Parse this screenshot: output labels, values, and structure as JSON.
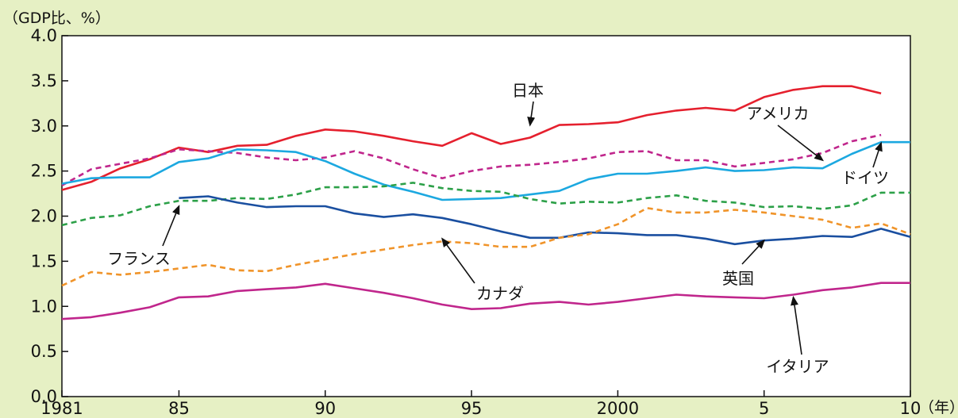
{
  "chart_data": {
    "type": "line",
    "ylabel": "（GDP比、%）",
    "xunit": "（年）",
    "ylim": [
      0,
      4.0
    ],
    "yticks": [
      "0.0",
      "0.5",
      "1.0",
      "1.5",
      "2.0",
      "2.5",
      "3.0",
      "3.5",
      "4.0"
    ],
    "xlim": [
      1981,
      2010
    ],
    "xticks": [
      {
        "x": 1981,
        "label": "1981"
      },
      {
        "x": 1985,
        "label": "85"
      },
      {
        "x": 1990,
        "label": "90"
      },
      {
        "x": 1995,
        "label": "95"
      },
      {
        "x": 2000,
        "label": "2000"
      },
      {
        "x": 2005,
        "label": "5"
      },
      {
        "x": 2010,
        "label": "10"
      }
    ],
    "grid": false,
    "series": [
      {
        "name": "日本",
        "color": "#e5202e",
        "dash": "solid",
        "x": [
          1981,
          1982,
          1983,
          1984,
          1985,
          1986,
          1987,
          1988,
          1989,
          1990,
          1991,
          1992,
          1993,
          1994,
          1995,
          1996,
          1997,
          1998,
          1999,
          2000,
          2001,
          2002,
          2003,
          2004,
          2005,
          2006,
          2007,
          2008,
          2009
        ],
        "values": [
          2.29,
          2.38,
          2.53,
          2.63,
          2.76,
          2.71,
          2.78,
          2.79,
          2.89,
          2.96,
          2.94,
          2.89,
          2.83,
          2.78,
          2.92,
          2.8,
          2.87,
          3.01,
          3.02,
          3.04,
          3.12,
          3.17,
          3.2,
          3.17,
          3.32,
          3.4,
          3.44,
          3.44,
          3.36
        ]
      },
      {
        "name": "アメリカ",
        "color": "#c0268c",
        "dash": "dashed",
        "x": [
          1981,
          1982,
          1983,
          1984,
          1985,
          1986,
          1987,
          1988,
          1989,
          1990,
          1991,
          1992,
          1993,
          1994,
          1995,
          1996,
          1997,
          1998,
          1999,
          2000,
          2001,
          2002,
          2003,
          2004,
          2005,
          2006,
          2007,
          2008,
          2009
        ],
        "values": [
          2.34,
          2.52,
          2.58,
          2.64,
          2.74,
          2.72,
          2.7,
          2.65,
          2.62,
          2.65,
          2.72,
          2.64,
          2.52,
          2.42,
          2.5,
          2.55,
          2.57,
          2.6,
          2.64,
          2.71,
          2.72,
          2.62,
          2.62,
          2.55,
          2.59,
          2.63,
          2.7,
          2.83,
          2.9
        ]
      },
      {
        "name": "ドイツ",
        "color": "#1ca8e0",
        "dash": "solid",
        "x": [
          1981,
          1982,
          1983,
          1984,
          1985,
          1986,
          1987,
          1988,
          1989,
          1990,
          1991,
          1992,
          1993,
          1994,
          1995,
          1996,
          1997,
          1998,
          1999,
          2000,
          2001,
          2002,
          2003,
          2004,
          2005,
          2006,
          2007,
          2008,
          2009,
          2010
        ],
        "values": [
          2.36,
          2.42,
          2.43,
          2.43,
          2.6,
          2.64,
          2.74,
          2.73,
          2.71,
          2.61,
          2.47,
          2.35,
          2.27,
          2.18,
          2.19,
          2.2,
          2.24,
          2.28,
          2.41,
          2.47,
          2.47,
          2.5,
          2.54,
          2.5,
          2.51,
          2.54,
          2.53,
          2.69,
          2.82,
          2.82
        ]
      },
      {
        "name": "フランス",
        "color": "#2ca048",
        "dash": "dashed",
        "x": [
          1981,
          1982,
          1983,
          1984,
          1985,
          1986,
          1987,
          1988,
          1989,
          1990,
          1991,
          1992,
          1993,
          1994,
          1995,
          1996,
          1997,
          1998,
          1999,
          2000,
          2001,
          2002,
          2003,
          2004,
          2005,
          2006,
          2007,
          2008,
          2009,
          2010
        ],
        "values": [
          1.9,
          1.98,
          2.01,
          2.11,
          2.17,
          2.17,
          2.2,
          2.19,
          2.24,
          2.32,
          2.32,
          2.33,
          2.37,
          2.31,
          2.28,
          2.27,
          2.19,
          2.14,
          2.16,
          2.15,
          2.2,
          2.23,
          2.17,
          2.15,
          2.1,
          2.11,
          2.08,
          2.12,
          2.26,
          2.26
        ]
      },
      {
        "name": "英国",
        "color": "#1a4fa0",
        "dash": "solid",
        "x": [
          1985,
          1986,
          1987,
          1988,
          1989,
          1990,
          1991,
          1992,
          1993,
          1994,
          1995,
          1996,
          1997,
          1998,
          1999,
          2000,
          2001,
          2002,
          2003,
          2004,
          2005,
          2006,
          2007,
          2008,
          2009,
          2010
        ],
        "values": [
          2.2,
          2.22,
          2.15,
          2.1,
          2.11,
          2.11,
          2.03,
          1.99,
          2.02,
          1.98,
          1.91,
          1.83,
          1.76,
          1.76,
          1.82,
          1.81,
          1.79,
          1.79,
          1.75,
          1.69,
          1.73,
          1.75,
          1.78,
          1.77,
          1.86,
          1.77
        ]
      },
      {
        "name": "カナダ",
        "color": "#f0942a",
        "dash": "dashed",
        "x": [
          1981,
          1982,
          1983,
          1984,
          1985,
          1986,
          1987,
          1988,
          1989,
          1990,
          1991,
          1992,
          1993,
          1994,
          1995,
          1996,
          1997,
          1998,
          1999,
          2000,
          2001,
          2002,
          2003,
          2004,
          2005,
          2006,
          2007,
          2008,
          2009,
          2010
        ],
        "values": [
          1.23,
          1.38,
          1.35,
          1.38,
          1.42,
          1.46,
          1.4,
          1.39,
          1.46,
          1.52,
          1.58,
          1.63,
          1.68,
          1.72,
          1.7,
          1.66,
          1.66,
          1.76,
          1.8,
          1.91,
          2.09,
          2.04,
          2.04,
          2.07,
          2.04,
          2.0,
          1.96,
          1.87,
          1.92,
          1.8
        ]
      },
      {
        "name": "イタリア",
        "color": "#c0268c",
        "dash": "solid",
        "x": [
          1981,
          1982,
          1983,
          1984,
          1985,
          1986,
          1987,
          1988,
          1989,
          1990,
          1991,
          1992,
          1993,
          1994,
          1995,
          1996,
          1997,
          1998,
          1999,
          2000,
          2001,
          2002,
          2003,
          2004,
          2005,
          2006,
          2007,
          2008,
          2009,
          2010
        ],
        "values": [
          0.86,
          0.88,
          0.93,
          0.99,
          1.1,
          1.11,
          1.17,
          1.19,
          1.21,
          1.25,
          1.2,
          1.15,
          1.09,
          1.02,
          0.97,
          0.98,
          1.03,
          1.05,
          1.02,
          1.05,
          1.09,
          1.13,
          1.11,
          1.1,
          1.09,
          1.13,
          1.18,
          1.21,
          1.26,
          1.26
        ]
      }
    ],
    "annotations": [
      {
        "series": "日本",
        "text": "日本",
        "point_to": [
          1997,
          3.01
        ]
      },
      {
        "series": "アメリカ",
        "text": "アメリカ",
        "point_to": [
          2007,
          2.62
        ]
      },
      {
        "series": "ドイツ",
        "text": "ドイツ",
        "point_to": [
          2009,
          2.81
        ]
      },
      {
        "series": "フランス",
        "text": "フランス",
        "point_to": [
          1985,
          2.11
        ]
      },
      {
        "series": "カナダ",
        "text": "カナダ",
        "point_to": [
          1994,
          1.75
        ]
      },
      {
        "series": "英国",
        "text": "英国",
        "point_to": [
          2005,
          1.73
        ]
      },
      {
        "series": "イタリア",
        "text": "イタリア",
        "point_to": [
          2006,
          1.1
        ]
      }
    ]
  }
}
